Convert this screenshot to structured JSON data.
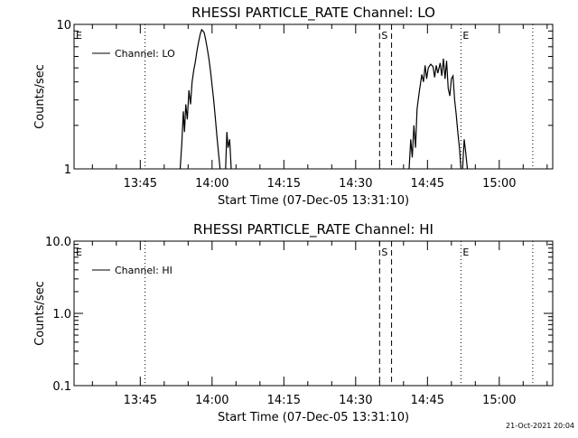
{
  "timestamp": "21-Oct-2021 20:04",
  "chart_data": [
    {
      "type": "line",
      "title": "RHESSI PARTICLE_RATE Channel: LO",
      "xlabel": "Start Time (07-Dec-05 13:31:10)",
      "ylabel": "Counts/sec",
      "yscale": "log",
      "ylim": [
        1,
        10
      ],
      "xlim_minutes_after_start": [
        0,
        100
      ],
      "xtick_labels": [
        "13:45",
        "14:00",
        "14:15",
        "14:30",
        "14:45",
        "15:00"
      ],
      "ytick_labels": [
        "1",
        "10"
      ],
      "legend": {
        "label": "Channel: LO",
        "placement": "top-left"
      },
      "markers": [
        {
          "label": "E",
          "time": "13:31:10",
          "style": "none"
        },
        {
          "label": "",
          "time": "13:46:00",
          "style": "dotted"
        },
        {
          "label": "S",
          "time": "14:35:00",
          "style": "dashed"
        },
        {
          "label": "",
          "time": "14:37:30",
          "style": "dashed"
        },
        {
          "label": "E",
          "time": "14:52:00",
          "style": "dotted"
        },
        {
          "label": "",
          "time": "15:07:00",
          "style": "dotted"
        }
      ],
      "series": [
        {
          "name": "Channel: LO",
          "segments": [
            [
              [
                "13:53:20",
                1.0
              ],
              [
                "13:53:40",
                1.5
              ],
              [
                "13:54:00",
                2.5
              ],
              [
                "13:54:15",
                1.8
              ],
              [
                "13:54:30",
                2.8
              ],
              [
                "13:54:50",
                2.2
              ],
              [
                "13:55:10",
                3.5
              ],
              [
                "13:55:30",
                2.8
              ],
              [
                "13:55:50",
                4.0
              ],
              [
                "13:56:10",
                4.8
              ],
              [
                "13:56:30",
                5.5
              ],
              [
                "13:56:50",
                6.5
              ],
              [
                "13:57:10",
                7.5
              ],
              [
                "13:57:30",
                8.5
              ],
              [
                "13:57:50",
                9.2
              ],
              [
                "13:58:20",
                8.8
              ],
              [
                "13:58:40",
                7.8
              ],
              [
                "13:59:00",
                6.8
              ],
              [
                "13:59:20",
                5.8
              ],
              [
                "13:59:40",
                4.8
              ],
              [
                "14:00:00",
                3.8
              ],
              [
                "14:00:20",
                3.0
              ],
              [
                "14:00:40",
                2.3
              ],
              [
                "14:01:00",
                1.7
              ],
              [
                "14:01:20",
                1.3
              ],
              [
                "14:01:40",
                1.0
              ]
            ],
            [
              [
                "14:02:50",
                1.0
              ],
              [
                "14:03:05",
                1.8
              ],
              [
                "14:03:20",
                1.4
              ],
              [
                "14:03:40",
                1.6
              ],
              [
                "14:04:00",
                1.0
              ]
            ],
            [
              [
                "14:41:10",
                1.0
              ],
              [
                "14:41:30",
                1.6
              ],
              [
                "14:41:50",
                1.2
              ],
              [
                "14:42:10",
                2.0
              ],
              [
                "14:42:30",
                1.4
              ],
              [
                "14:42:50",
                2.6
              ],
              [
                "14:43:20",
                3.5
              ],
              [
                "14:43:50",
                4.5
              ],
              [
                "14:44:10",
                4.0
              ],
              [
                "14:44:30",
                5.2
              ],
              [
                "14:44:50",
                4.2
              ],
              [
                "14:45:10",
                5.0
              ],
              [
                "14:45:40",
                5.3
              ],
              [
                "14:46:10",
                5.1
              ],
              [
                "14:46:30",
                4.3
              ],
              [
                "14:46:50",
                5.2
              ],
              [
                "14:47:10",
                4.6
              ],
              [
                "14:47:40",
                5.4
              ],
              [
                "14:48:00",
                4.4
              ],
              [
                "14:48:20",
                5.8
              ],
              [
                "14:48:40",
                4.2
              ],
              [
                "14:49:00",
                5.6
              ],
              [
                "14:49:20",
                3.6
              ],
              [
                "14:49:40",
                3.2
              ],
              [
                "14:50:00",
                4.2
              ],
              [
                "14:50:20",
                4.4
              ],
              [
                "14:50:40",
                3.0
              ],
              [
                "14:51:00",
                2.4
              ],
              [
                "14:51:20",
                1.8
              ],
              [
                "14:51:40",
                1.4
              ],
              [
                "14:52:00",
                1.0
              ]
            ],
            [
              [
                "14:52:20",
                1.0
              ],
              [
                "14:52:40",
                1.6
              ],
              [
                "14:53:00",
                1.3
              ],
              [
                "14:53:20",
                1.0
              ]
            ]
          ]
        }
      ]
    },
    {
      "type": "line",
      "title": "RHESSI PARTICLE_RATE Channel: HI",
      "xlabel": "Start Time (07-Dec-05 13:31:10)",
      "ylabel": "Counts/sec",
      "yscale": "log",
      "ylim": [
        0.1,
        10
      ],
      "xlim_minutes_after_start": [
        0,
        100
      ],
      "xtick_labels": [
        "13:45",
        "14:00",
        "14:15",
        "14:30",
        "14:45",
        "15:00"
      ],
      "ytick_labels": [
        "0.1",
        "1.0",
        "10.0"
      ],
      "legend": {
        "label": "Channel: HI",
        "placement": "top-left"
      },
      "markers": [
        {
          "label": "E",
          "time": "13:31:10",
          "style": "none"
        },
        {
          "label": "",
          "time": "13:46:00",
          "style": "dotted"
        },
        {
          "label": "S",
          "time": "14:35:00",
          "style": "dashed"
        },
        {
          "label": "",
          "time": "14:37:30",
          "style": "dashed"
        },
        {
          "label": "E",
          "time": "14:52:00",
          "style": "dotted"
        },
        {
          "label": "",
          "time": "15:07:00",
          "style": "dotted"
        }
      ],
      "series": [
        {
          "name": "Channel: HI",
          "segments": []
        }
      ]
    }
  ]
}
